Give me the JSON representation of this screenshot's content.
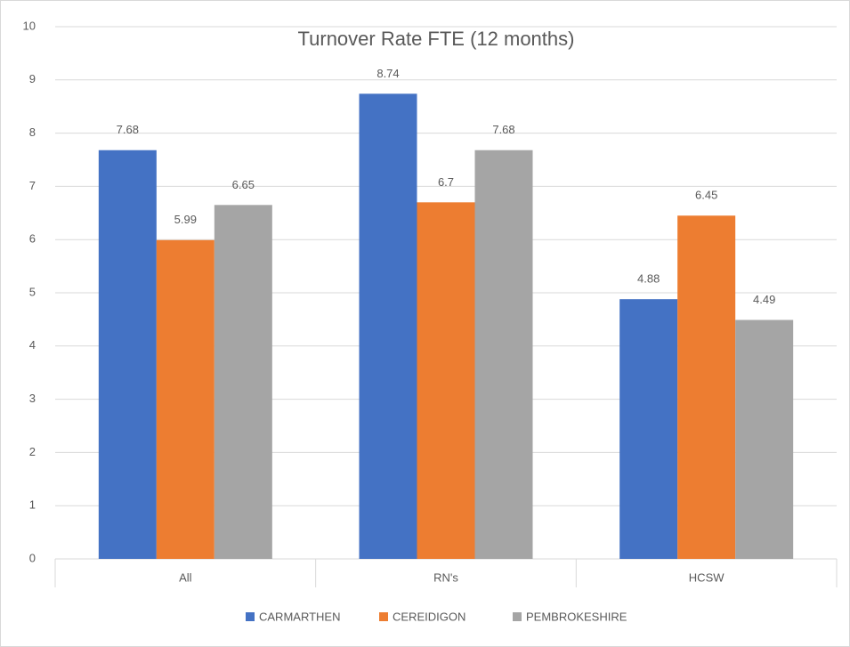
{
  "chart_data": {
    "type": "bar",
    "title": "Turnover Rate FTE (12 months)",
    "categories": [
      "All",
      "RN's",
      "HCSW"
    ],
    "series": [
      {
        "name": "CARMARTHEN",
        "color": "#4472c4",
        "values": [
          7.68,
          8.74,
          4.88
        ]
      },
      {
        "name": "CEREIDIGON",
        "color": "#ed7d31",
        "values": [
          5.99,
          6.7,
          6.45
        ]
      },
      {
        "name": "PEMBROKESHIRE",
        "color": "#a5a5a5",
        "values": [
          6.65,
          7.68,
          4.49
        ]
      }
    ],
    "ylim": [
      0,
      10
    ],
    "yticks": [
      0,
      1,
      2,
      3,
      4,
      5,
      6,
      7,
      8,
      9,
      10
    ],
    "grid": true,
    "legend": "bottom"
  }
}
